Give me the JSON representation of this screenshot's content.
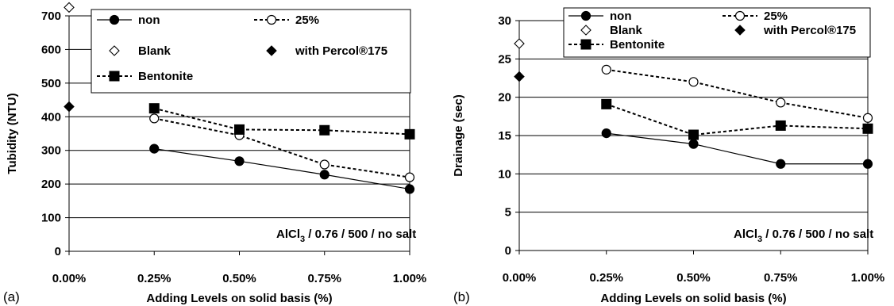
{
  "chart_data": [
    {
      "type": "line",
      "panel_label": "(a)",
      "xlabel": "Adding Levels on solid basis (%)",
      "ylabel": "Tubidity (NTU)",
      "x_tick_labels": [
        "0.00%",
        "0.25%",
        "0.50%",
        "0.75%",
        "1.00%"
      ],
      "x_values": [
        0,
        0.25,
        0.5,
        0.75,
        1.0
      ],
      "xlim": [
        0,
        1.0
      ],
      "ylim": [
        0,
        700
      ],
      "y_ticks": [
        0,
        100,
        200,
        300,
        400,
        500,
        600,
        700
      ],
      "grid": "horizontal",
      "annotation": {
        "main": "AlCl",
        "sub": "3",
        "rest": " / 0.76 / 500 / no salt"
      },
      "legend_position": "top",
      "series": [
        {
          "name": "non",
          "x": [
            0.25,
            0.5,
            0.75,
            1.0
          ],
          "values": [
            305,
            268,
            228,
            185
          ]
        },
        {
          "name": "25%",
          "x": [
            0.25,
            0.5,
            0.75,
            1.0
          ],
          "values": [
            395,
            345,
            258,
            220
          ]
        },
        {
          "name": "Blank",
          "x": [
            0
          ],
          "values": [
            725
          ]
        },
        {
          "name": "with Percol®175",
          "x": [
            0
          ],
          "values": [
            430
          ]
        },
        {
          "name": "Bentonite",
          "x": [
            0.25,
            0.5,
            0.75,
            1.0
          ],
          "values": [
            425,
            362,
            360,
            348
          ]
        }
      ]
    },
    {
      "type": "line",
      "panel_label": "(b)",
      "xlabel": "Adding Levels on solid basis (%)",
      "ylabel": "Drainage (sec)",
      "x_tick_labels": [
        "0.00%",
        "0.25%",
        "0.50%",
        "0.75%",
        "1.00%"
      ],
      "x_values": [
        0,
        0.25,
        0.5,
        0.75,
        1.0
      ],
      "xlim": [
        0,
        1.0
      ],
      "ylim": [
        0,
        30
      ],
      "y_ticks": [
        0,
        5,
        10,
        15,
        20,
        25,
        30
      ],
      "grid": "horizontal",
      "annotation": {
        "main": "AlCl",
        "sub": "3",
        "rest": " / 0.76 / 500 / no salt"
      },
      "legend_position": "top",
      "series": [
        {
          "name": "non",
          "x": [
            0.25,
            0.5,
            0.75,
            1.0
          ],
          "values": [
            15.3,
            13.9,
            11.3,
            11.3
          ]
        },
        {
          "name": "25%",
          "x": [
            0.25,
            0.5,
            0.75,
            1.0
          ],
          "values": [
            23.6,
            22.0,
            19.3,
            17.3
          ]
        },
        {
          "name": "Blank",
          "x": [
            0
          ],
          "values": [
            27.0
          ]
        },
        {
          "name": "with Percol®175",
          "x": [
            0
          ],
          "values": [
            22.7
          ]
        },
        {
          "name": "Bentonite",
          "x": [
            0.25,
            0.5,
            0.75,
            1.0
          ],
          "values": [
            19.1,
            15.1,
            16.3,
            15.9
          ]
        }
      ]
    }
  ]
}
